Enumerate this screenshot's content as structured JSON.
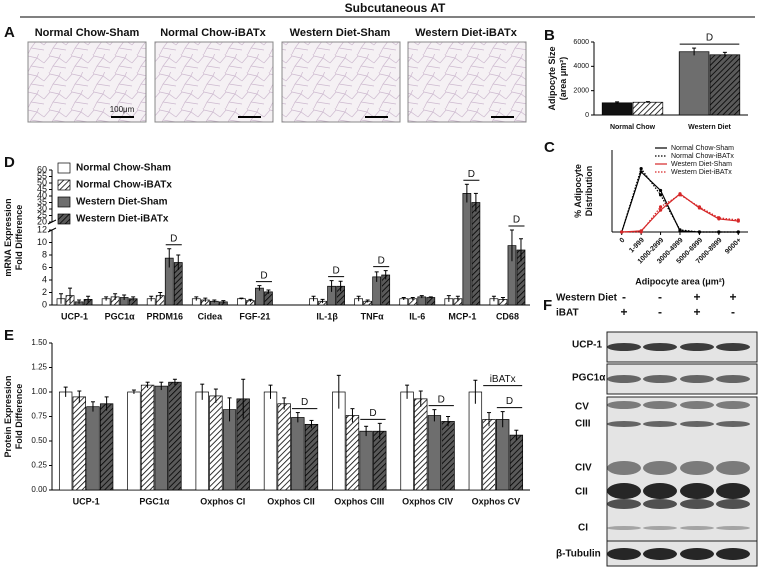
{
  "figure": {
    "title": "Subcutaneous AT",
    "panels": [
      "A",
      "B",
      "C",
      "D",
      "E",
      "F"
    ]
  },
  "images": {
    "labels": [
      "Normal Chow-Sham",
      "Normal Chow-iBATx",
      "Western Diet-Sham",
      "Western Diet-iBATx"
    ],
    "scale_bar": "100μm"
  },
  "chart_data": [
    {
      "type": "bar",
      "ylabel": [
        "Adipocyte Size",
        "(area μm²)"
      ],
      "categories": [
        "Normal Chow",
        "Western Diet"
      ],
      "series": [
        {
          "colors": [
            "#111111",
            "#6e6e6e"
          ],
          "hatch": false,
          "values": [
            1000,
            5200
          ],
          "errors": [
            80,
            300
          ]
        },
        {
          "colors": [
            "#ffffff",
            "#5a5a5a"
          ],
          "hatch": true,
          "values": [
            1050,
            4950
          ],
          "errors": [
            50,
            200
          ]
        }
      ],
      "annotations": [
        null,
        "D"
      ],
      "ylim": [
        0,
        6000
      ],
      "yticks": [
        0,
        2000,
        4000,
        6000
      ]
    },
    {
      "type": "line",
      "ylabel": [
        "% Adipocyte",
        "Distribution"
      ],
      "xlabel": "Adipocyte area (μm²)",
      "categories": [
        "0",
        "1-999",
        "1000-2999",
        "3000-4999",
        "5000-6999",
        "7000-8999",
        "9000+"
      ],
      "series": [
        {
          "name": "Normal Chow-Sham",
          "color": "#000000",
          "dash": "solid",
          "values": [
            0,
            55,
            38,
            1,
            0,
            0,
            0
          ]
        },
        {
          "name": "Normal Chow-iBATx",
          "color": "#000000",
          "dash": "dotted",
          "values": [
            0,
            58,
            34,
            2,
            0,
            0,
            0
          ]
        },
        {
          "name": "Western Diet-Sham",
          "color": "#d62728",
          "dash": "solid",
          "values": [
            0,
            1,
            20,
            35,
            22,
            12,
            10
          ]
        },
        {
          "name": "Western Diet-iBATx",
          "color": "#d62728",
          "dash": "dotted",
          "values": [
            0,
            0,
            23,
            34,
            23,
            13,
            11
          ]
        }
      ],
      "ylim": [
        0,
        75
      ]
    },
    {
      "type": "bar",
      "ylabel": [
        "mRNA Expression",
        "Fold Difference"
      ],
      "categories": [
        "UCP-1",
        "PGC1α",
        "PRDM16",
        "Cidea",
        "FGF-21",
        "IL-1β",
        "TNFα",
        "IL-6",
        "MCP-1",
        "CD68"
      ],
      "series": [
        {
          "name": "Normal Chow-Sham",
          "color": "#ffffff",
          "hatch": false,
          "values": [
            1.0,
            1.0,
            1.0,
            1.0,
            1.0,
            1.0,
            1.0,
            1.0,
            1.0,
            1.0
          ],
          "errors": [
            0.8,
            0.3,
            0.4,
            0.3,
            0.1,
            0.4,
            0.4,
            0.2,
            0.5,
            0.4
          ]
        },
        {
          "name": "Normal Chow-iBATx",
          "color": "#ffffff",
          "hatch": true,
          "values": [
            1.5,
            1.3,
            1.5,
            0.8,
            0.7,
            0.6,
            0.6,
            1.0,
            1.0,
            0.9
          ],
          "errors": [
            1.2,
            0.5,
            0.5,
            0.3,
            0.2,
            0.3,
            0.2,
            0.2,
            0.4,
            0.3
          ]
        },
        {
          "name": "Western Diet-Sham",
          "color": "#6e6e6e",
          "hatch": false,
          "values": [
            0.5,
            1.2,
            7.5,
            0.6,
            2.7,
            3.0,
            4.5,
            1.3,
            42,
            9.5
          ],
          "errors": [
            0.3,
            0.4,
            1.5,
            0.2,
            0.4,
            0.9,
            0.8,
            0.2,
            7,
            2.5
          ]
        },
        {
          "name": "Western Diet-iBATx",
          "color": "#5a5a5a",
          "hatch": true,
          "values": [
            0.9,
            1.0,
            6.8,
            0.5,
            2.1,
            3.0,
            4.8,
            1.2,
            35,
            8.8
          ],
          "errors": [
            0.5,
            0.3,
            1.2,
            0.2,
            0.3,
            0.8,
            0.7,
            0.1,
            7,
            1.8
          ]
        }
      ],
      "annotations": [
        null,
        null,
        "D",
        null,
        "D",
        "D",
        "D",
        null,
        "D",
        "D"
      ],
      "ylim": [
        0,
        60
      ],
      "axis_break": [
        12,
        20
      ],
      "yticks": [
        0,
        2,
        4,
        6,
        8,
        10,
        12,
        20,
        25,
        30,
        35,
        40,
        45,
        50,
        55,
        60
      ]
    },
    {
      "type": "bar",
      "ylabel": [
        "Protein Expression",
        "Fold Difference"
      ],
      "categories": [
        "UCP-1",
        "PGC1α",
        "Oxphos CI",
        "Oxphos CII",
        "Oxphos CIII",
        "Oxphos CIV",
        "Oxphos CV"
      ],
      "series": [
        {
          "color": "#ffffff",
          "hatch": false,
          "values": [
            1.0,
            1.0,
            1.0,
            1.0,
            1.0,
            1.0,
            1.0
          ],
          "errors": [
            0.05,
            0.02,
            0.08,
            0.07,
            0.17,
            0.07,
            0.12
          ]
        },
        {
          "color": "#ffffff",
          "hatch": true,
          "values": [
            0.95,
            1.07,
            0.96,
            0.88,
            0.76,
            0.93,
            0.72
          ],
          "errors": [
            0.06,
            0.03,
            0.07,
            0.06,
            0.07,
            0.08,
            0.07
          ]
        },
        {
          "color": "#6e6e6e",
          "hatch": false,
          "values": [
            0.85,
            1.06,
            0.82,
            0.74,
            0.6,
            0.76,
            0.72
          ],
          "errors": [
            0.05,
            0.04,
            0.12,
            0.05,
            0.05,
            0.06,
            0.08
          ]
        },
        {
          "color": "#5a5a5a",
          "hatch": true,
          "values": [
            0.88,
            1.1,
            0.93,
            0.67,
            0.6,
            0.7,
            0.56
          ],
          "errors": [
            0.07,
            0.03,
            0.2,
            0.04,
            0.08,
            0.05,
            0.05
          ]
        }
      ],
      "annotations": [
        null,
        null,
        null,
        "D",
        "D",
        "D",
        "D"
      ],
      "bracket_labels": [
        null,
        null,
        null,
        null,
        null,
        null,
        "iBATx"
      ],
      "ylim": [
        0,
        1.5
      ],
      "yticks": [
        {
          "value": 0,
          "label": "0.00"
        },
        {
          "value": 0.25,
          "label": "0.25"
        },
        {
          "value": 0.5,
          "label": "0.50"
        },
        {
          "value": 0.75,
          "label": "0.75"
        },
        {
          "value": 1,
          "label": "1.00"
        },
        {
          "value": 1.25,
          "label": "1.25"
        },
        {
          "value": 1.5,
          "label": "1.50"
        }
      ]
    }
  ],
  "blot": {
    "rows": [
      {
        "label": "Western Diet",
        "signs": [
          "-",
          "-",
          "+",
          "+"
        ]
      },
      {
        "label": "iBAT",
        "signs": [
          "+",
          "-",
          "+",
          "-"
        ]
      }
    ],
    "bands": [
      "UCP-1",
      "PGC1α",
      "CV",
      "CIII",
      "CIV",
      "CII",
      "CI",
      "β-Tubulin"
    ]
  }
}
